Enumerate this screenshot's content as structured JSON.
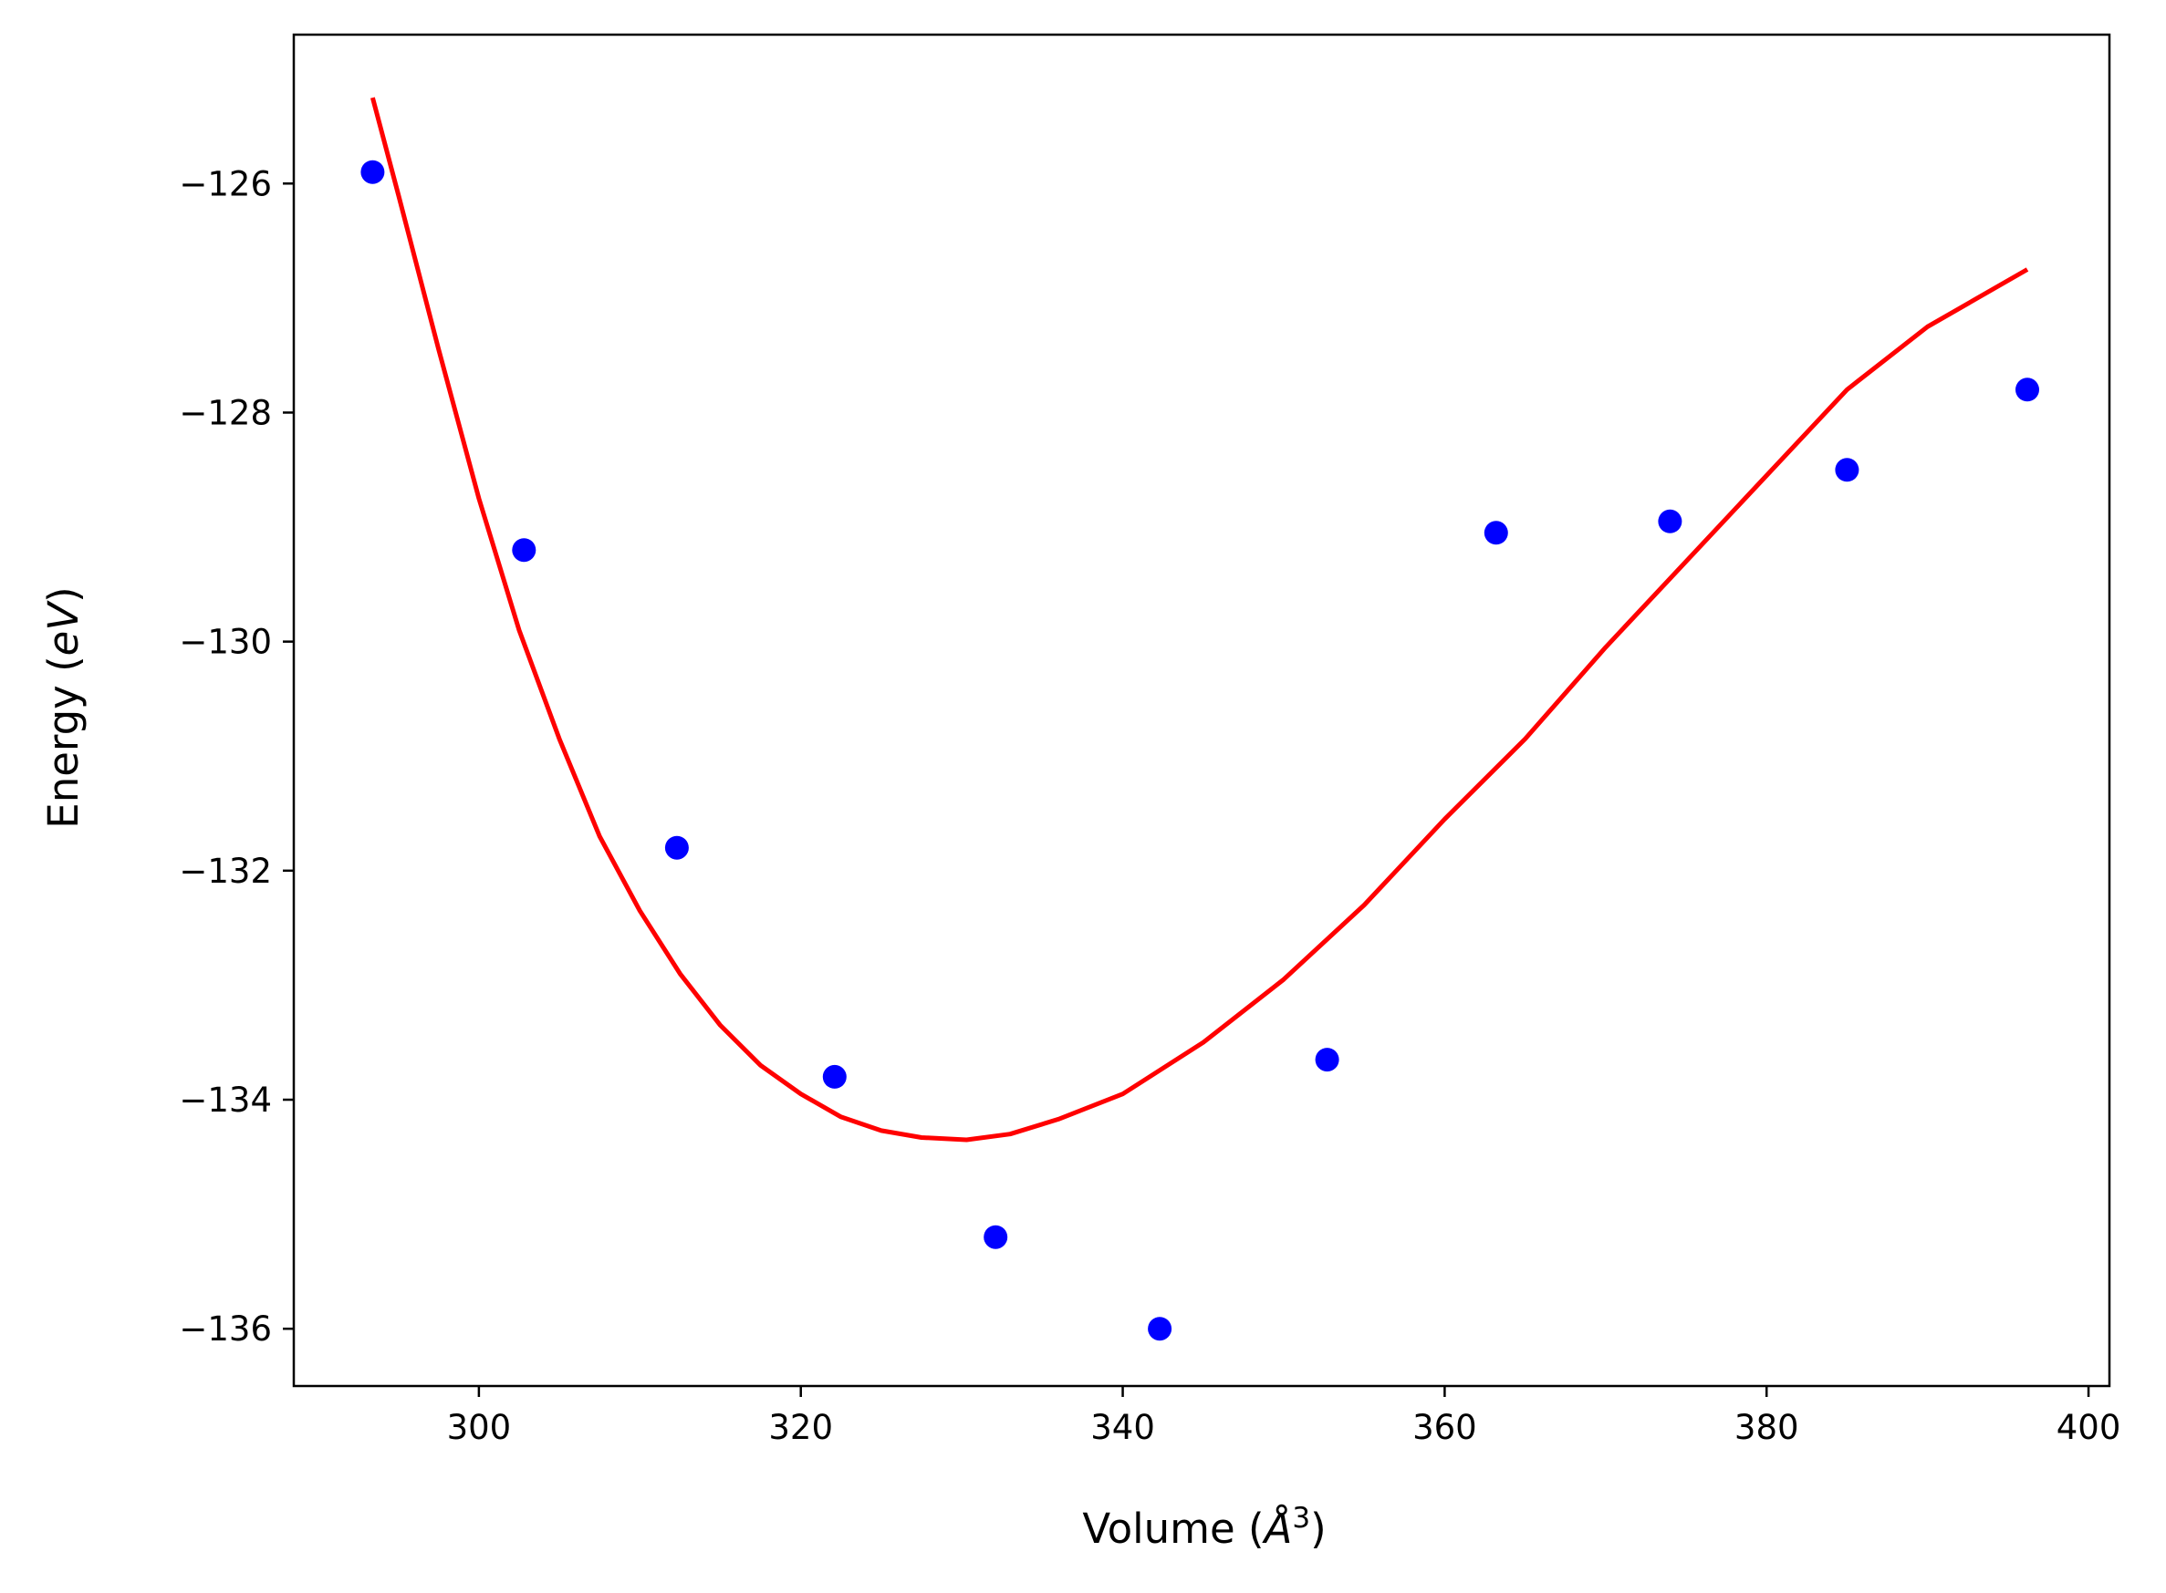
{
  "chart_data": {
    "type": "scatter",
    "xlabel": "Volume",
    "xlabel_unit": "Å",
    "xlabel_unit_power": "3",
    "ylabel": "Energy",
    "ylabel_unit": "eV",
    "xlim": [
      288.5,
      401.3
    ],
    "ylim": [
      -136.5,
      -124.7
    ],
    "xticks": [
      300,
      320,
      340,
      360,
      380,
      400
    ],
    "yticks": [
      -126,
      -128,
      -130,
      -132,
      -134,
      -136
    ],
    "grid": false,
    "series": [
      {
        "kind": "points",
        "color": "#0000ff",
        "x": [
          293.4,
          302.8,
          312.3,
          322.1,
          332.1,
          342.3,
          352.7,
          363.2,
          374.0,
          385.0,
          396.2
        ],
        "y": [
          -125.9,
          -129.2,
          -131.8,
          -133.8,
          -135.2,
          -136.0,
          -133.65,
          -129.05,
          -128.95,
          -128.5,
          -127.8
        ]
      },
      {
        "kind": "fit-line",
        "color": "#ff0000",
        "x": [
          293.4,
          295,
          297.5,
          300,
          302.5,
          305,
          307.5,
          310,
          312.5,
          315,
          317.5,
          320,
          322.5,
          325,
          327.5,
          330.3,
          333,
          336,
          340,
          345,
          350,
          355,
          360,
          365,
          370,
          375,
          380,
          385,
          390,
          396.2
        ],
        "y": [
          -125.25,
          -126.1,
          -127.45,
          -128.75,
          -129.9,
          -130.85,
          -131.7,
          -132.35,
          -132.9,
          -133.35,
          -133.7,
          -133.95,
          -134.15,
          -134.27,
          -134.33,
          -134.35,
          -134.3,
          -134.17,
          -133.95,
          -133.5,
          -132.95,
          -132.3,
          -131.55,
          -130.85,
          -130.05,
          -129.3,
          -128.55,
          -127.8,
          -127.25,
          -126.75
        ]
      }
    ]
  }
}
